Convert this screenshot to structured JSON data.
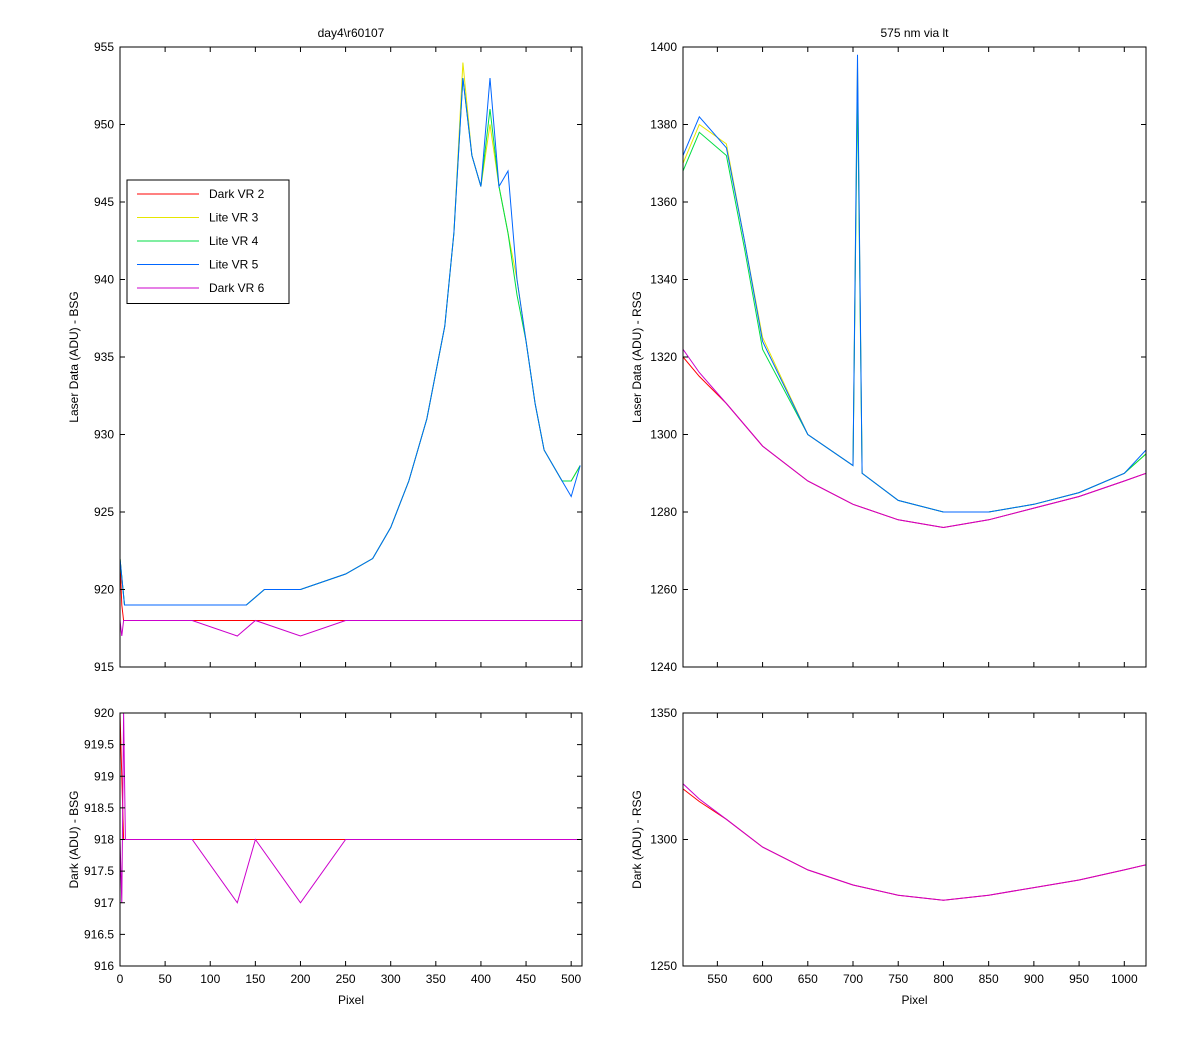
{
  "figure": {
    "left_title": "day4\\r60107",
    "right_title": "575 nm via lt"
  },
  "colors": {
    "dark_vr2": "#ff0000",
    "lite_vr3": "#e6e600",
    "lite_vr4": "#00dd44",
    "lite_vr5": "#0066ff",
    "dark_vr6": "#cc00cc"
  },
  "chart_data": [
    {
      "id": "top_left",
      "type": "line",
      "title": "day4\\r60107",
      "xlabel": "",
      "ylabel": "Laser Data (ADU) - BSG",
      "xlim": [
        0,
        512
      ],
      "ylim": [
        915,
        955
      ],
      "yticks": [
        915,
        920,
        925,
        930,
        935,
        940,
        945,
        950,
        955
      ],
      "xticks": [
        0,
        50,
        100,
        150,
        200,
        250,
        300,
        350,
        400,
        450,
        500
      ],
      "show_x_tick_labels": false,
      "legend": {
        "placement": "upper-left",
        "entries": [
          "Dark VR 2",
          "Lite VR 3",
          "Lite VR 4",
          "Lite VR 5",
          "Dark VR 6"
        ]
      },
      "series": [
        {
          "name": "Dark VR 2",
          "x": [
            0,
            2,
            4,
            6,
            30,
            80,
            130,
            150,
            200,
            250,
            300,
            350,
            400,
            450,
            512
          ],
          "y": [
            922,
            919,
            918,
            918,
            918,
            918,
            918,
            918,
            918,
            918,
            918,
            918,
            918,
            918,
            918
          ]
        },
        {
          "name": "Lite VR 3",
          "x": [
            0,
            5,
            50,
            100,
            140,
            160,
            200,
            250,
            280,
            300,
            320,
            340,
            360,
            370,
            380,
            390,
            400,
            410,
            420,
            430,
            440,
            450,
            460,
            470,
            480,
            490,
            500,
            510
          ],
          "y": [
            922,
            919,
            919,
            919,
            919,
            920,
            920,
            921,
            922,
            924,
            927,
            931,
            937,
            943,
            954,
            948,
            946,
            950,
            946,
            943,
            940,
            936,
            932,
            929,
            928,
            927,
            927,
            928
          ]
        },
        {
          "name": "Lite VR 4",
          "x": [
            0,
            5,
            50,
            100,
            140,
            160,
            200,
            250,
            280,
            300,
            320,
            340,
            360,
            370,
            380,
            390,
            400,
            410,
            420,
            430,
            440,
            450,
            460,
            470,
            480,
            490,
            500,
            510
          ],
          "y": [
            922,
            919,
            919,
            919,
            919,
            920,
            920,
            921,
            922,
            924,
            927,
            931,
            937,
            943,
            953,
            948,
            946,
            951,
            946,
            943,
            939,
            936,
            932,
            929,
            928,
            927,
            927,
            928
          ]
        },
        {
          "name": "Lite VR 5",
          "x": [
            0,
            5,
            50,
            100,
            140,
            160,
            200,
            250,
            280,
            300,
            320,
            340,
            360,
            370,
            380,
            390,
            400,
            410,
            420,
            430,
            440,
            450,
            460,
            470,
            480,
            490,
            500,
            510
          ],
          "y": [
            922,
            919,
            919,
            919,
            919,
            920,
            920,
            921,
            922,
            924,
            927,
            931,
            937,
            943,
            953,
            948,
            946,
            953,
            946,
            947,
            940,
            936,
            932,
            929,
            928,
            927,
            926,
            928
          ]
        },
        {
          "name": "Dark VR 6",
          "x": [
            0,
            2,
            4,
            6,
            30,
            80,
            130,
            150,
            200,
            250,
            300,
            350,
            400,
            450,
            512
          ],
          "y": [
            918,
            917,
            918,
            918,
            918,
            918,
            917,
            918,
            917,
            918,
            918,
            918,
            918,
            918,
            918
          ]
        }
      ]
    },
    {
      "id": "top_right",
      "type": "line",
      "title": "575 nm via lt",
      "xlabel": "",
      "ylabel": "Laser Data (ADU) - RSG",
      "xlim": [
        512,
        1024
      ],
      "ylim": [
        1240,
        1400
      ],
      "yticks": [
        1240,
        1260,
        1280,
        1300,
        1320,
        1340,
        1360,
        1380,
        1400
      ],
      "xticks": [
        550,
        600,
        650,
        700,
        750,
        800,
        850,
        900,
        950,
        1000
      ],
      "show_x_tick_labels": false,
      "series": [
        {
          "name": "Dark VR 2",
          "x": [
            512,
            530,
            560,
            600,
            650,
            700,
            750,
            800,
            850,
            900,
            950,
            1000,
            1024
          ],
          "y": [
            1320,
            1315,
            1308,
            1297,
            1288,
            1282,
            1278,
            1276,
            1278,
            1281,
            1284,
            1288,
            1290
          ]
        },
        {
          "name": "Lite VR 3",
          "x": [
            512,
            530,
            560,
            580,
            600,
            650,
            700,
            705,
            710,
            750,
            800,
            850,
            900,
            950,
            1000,
            1024
          ],
          "y": [
            1370,
            1380,
            1375,
            1350,
            1325,
            1300,
            1292,
            1395,
            1290,
            1283,
            1280,
            1280,
            1282,
            1285,
            1290,
            1295
          ]
        },
        {
          "name": "Lite VR 4",
          "x": [
            512,
            530,
            560,
            580,
            600,
            650,
            700,
            705,
            710,
            750,
            800,
            850,
            900,
            950,
            1000,
            1024
          ],
          "y": [
            1368,
            1378,
            1372,
            1348,
            1322,
            1300,
            1292,
            1390,
            1290,
            1283,
            1280,
            1280,
            1282,
            1285,
            1290,
            1295
          ]
        },
        {
          "name": "Lite VR 5",
          "x": [
            512,
            530,
            560,
            580,
            600,
            650,
            700,
            705,
            710,
            750,
            800,
            850,
            900,
            950,
            1000,
            1024
          ],
          "y": [
            1372,
            1382,
            1374,
            1350,
            1324,
            1300,
            1292,
            1398,
            1290,
            1283,
            1280,
            1280,
            1282,
            1285,
            1290,
            1296
          ]
        },
        {
          "name": "Dark VR 6",
          "x": [
            512,
            530,
            560,
            600,
            650,
            700,
            750,
            800,
            850,
            900,
            950,
            1000,
            1024
          ],
          "y": [
            1322,
            1316,
            1308,
            1297,
            1288,
            1282,
            1278,
            1276,
            1278,
            1281,
            1284,
            1288,
            1290
          ]
        }
      ]
    },
    {
      "id": "bottom_left",
      "type": "line",
      "title": "",
      "xlabel": "Pixel",
      "ylabel": "Dark (ADU) - BSG",
      "xlim": [
        0,
        512
      ],
      "ylim": [
        916,
        920
      ],
      "yticks": [
        916,
        916.5,
        917,
        917.5,
        918,
        918.5,
        919,
        919.5,
        920
      ],
      "xticks": [
        0,
        50,
        100,
        150,
        200,
        250,
        300,
        350,
        400,
        450,
        500
      ],
      "show_x_tick_labels": true,
      "series": [
        {
          "name": "Dark VR 2",
          "x": [
            0,
            2,
            4,
            6,
            30,
            80,
            130,
            150,
            200,
            250,
            300,
            350,
            400,
            450,
            512
          ],
          "y": [
            920,
            919,
            918,
            918,
            918,
            918,
            918,
            918,
            918,
            918,
            918,
            918,
            918,
            918,
            918
          ]
        },
        {
          "name": "Dark VR 6",
          "x": [
            0,
            2,
            4,
            6,
            30,
            80,
            130,
            150,
            200,
            250,
            300,
            350,
            400,
            450,
            512
          ],
          "y": [
            918,
            917,
            920,
            918,
            918,
            918,
            917,
            918,
            917,
            918,
            918,
            918,
            918,
            918,
            918
          ]
        }
      ]
    },
    {
      "id": "bottom_right",
      "type": "line",
      "title": "",
      "xlabel": "Pixel",
      "ylabel": "Dark (ADU) - RSG",
      "xlim": [
        512,
        1024
      ],
      "ylim": [
        1250,
        1350
      ],
      "yticks": [
        1250,
        1300,
        1350
      ],
      "xticks": [
        550,
        600,
        650,
        700,
        750,
        800,
        850,
        900,
        950,
        1000
      ],
      "show_x_tick_labels": true,
      "series": [
        {
          "name": "Dark VR 2",
          "x": [
            512,
            530,
            560,
            600,
            650,
            700,
            750,
            800,
            850,
            900,
            950,
            1000,
            1024
          ],
          "y": [
            1320,
            1315,
            1308,
            1297,
            1288,
            1282,
            1278,
            1276,
            1278,
            1281,
            1284,
            1288,
            1290
          ]
        },
        {
          "name": "Dark VR 6",
          "x": [
            512,
            530,
            560,
            600,
            650,
            700,
            750,
            800,
            850,
            900,
            950,
            1000,
            1024
          ],
          "y": [
            1322,
            1316,
            1308,
            1297,
            1288,
            1282,
            1278,
            1276,
            1278,
            1281,
            1284,
            1288,
            1290
          ]
        }
      ]
    }
  ]
}
